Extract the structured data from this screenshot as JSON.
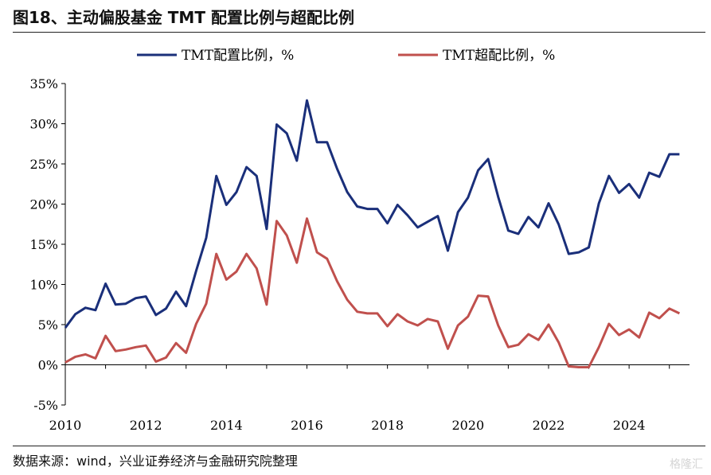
{
  "title": "图18、主动偏股基金 TMT 配置比例与超配比例",
  "source": "数据来源：wind，兴业证券经济与金融研究院整理",
  "watermark": "格隆汇",
  "chart_data": {
    "type": "line",
    "title": "图18、主动偏股基金 TMT 配置比例与超配比例",
    "xlabel": "",
    "ylabel": "",
    "xlim": [
      2010,
      2025.5
    ],
    "ylim": [
      -5,
      35
    ],
    "x_ticks": [
      "2010",
      "2012",
      "2014",
      "2016",
      "2018",
      "2020",
      "2022",
      "2024"
    ],
    "y_ticks": [
      "35%",
      "30%",
      "25%",
      "20%",
      "15%",
      "10%",
      "5%",
      "0%",
      "-5%"
    ],
    "legend_position": "top",
    "x": [
      2010.0,
      2010.25,
      2010.5,
      2010.75,
      2011.0,
      2011.25,
      2011.5,
      2011.75,
      2012.0,
      2012.25,
      2012.5,
      2012.75,
      2013.0,
      2013.25,
      2013.5,
      2013.75,
      2014.0,
      2014.25,
      2014.5,
      2014.75,
      2015.0,
      2015.25,
      2015.5,
      2015.75,
      2016.0,
      2016.25,
      2016.5,
      2016.75,
      2017.0,
      2017.25,
      2017.5,
      2017.75,
      2018.0,
      2018.25,
      2018.5,
      2018.75,
      2019.0,
      2019.25,
      2019.5,
      2019.75,
      2020.0,
      2020.25,
      2020.5,
      2020.75,
      2021.0,
      2021.25,
      2021.5,
      2021.75,
      2022.0,
      2022.25,
      2022.5,
      2022.75,
      2023.0,
      2023.25,
      2023.5,
      2023.75,
      2024.0,
      2024.25,
      2024.5,
      2024.75,
      2025.0,
      2025.25
    ],
    "series": [
      {
        "name": "TMT配置比例，%",
        "color": "#1a2f7a",
        "values": [
          4.6,
          6.3,
          7.1,
          6.8,
          10.1,
          7.5,
          7.6,
          8.3,
          8.5,
          6.2,
          7.0,
          9.1,
          7.3,
          11.7,
          15.8,
          23.5,
          19.9,
          21.5,
          24.6,
          23.5,
          16.9,
          29.9,
          28.8,
          25.4,
          32.9,
          27.7,
          27.7,
          24.4,
          21.5,
          19.7,
          19.4,
          19.4,
          17.6,
          19.9,
          18.6,
          17.1,
          17.8,
          18.5,
          14.2,
          19.0,
          20.8,
          24.2,
          25.6,
          20.9,
          16.7,
          16.3,
          18.4,
          17.1,
          20.1,
          17.5,
          13.8,
          14.0,
          14.6,
          20.1,
          23.5,
          21.4,
          22.5,
          20.8,
          23.9,
          23.4,
          26.2,
          26.2
        ]
      },
      {
        "name": "TMT超配比例，%",
        "color": "#c0504d",
        "values": [
          0.3,
          1.0,
          1.3,
          0.8,
          3.6,
          1.7,
          1.9,
          2.2,
          2.4,
          0.4,
          0.9,
          2.7,
          1.5,
          5.1,
          7.6,
          13.8,
          10.6,
          11.6,
          13.8,
          12.0,
          7.5,
          17.9,
          16.1,
          12.7,
          18.2,
          14.0,
          13.2,
          10.4,
          8.1,
          6.6,
          6.4,
          6.4,
          4.8,
          6.3,
          5.4,
          4.9,
          5.7,
          5.4,
          2.0,
          4.9,
          6.0,
          8.6,
          8.5,
          4.9,
          2.2,
          2.5,
          3.8,
          3.1,
          5.0,
          2.8,
          -0.2,
          -0.3,
          -0.3,
          2.2,
          5.1,
          3.7,
          4.4,
          3.4,
          6.5,
          5.8,
          7.0,
          6.4
        ]
      }
    ]
  }
}
